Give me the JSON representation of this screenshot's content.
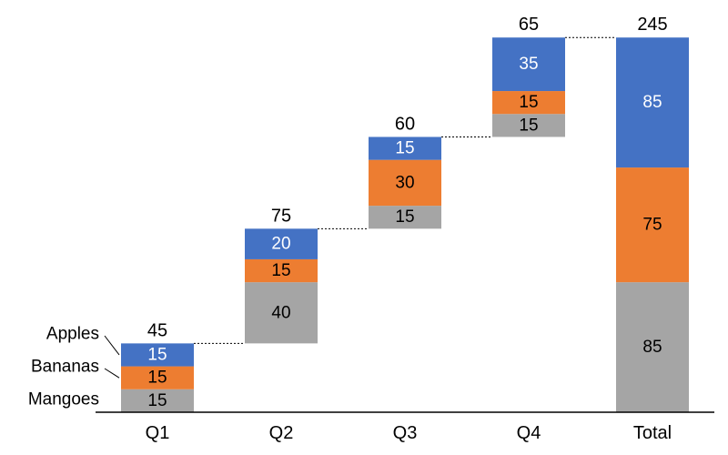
{
  "chart_data": {
    "type": "bar",
    "subtype": "stacked-waterfall",
    "title": "",
    "xlabel": "",
    "ylabel": "",
    "ylim": [
      0,
      260
    ],
    "grid": false,
    "legend_placement": "left",
    "categories": [
      "Q1",
      "Q2",
      "Q3",
      "Q4",
      "Total"
    ],
    "bases": [
      0,
      45,
      120,
      180,
      0
    ],
    "totals": [
      "45",
      "75",
      "60",
      "65",
      "245"
    ],
    "series": [
      {
        "name": "Mangoes",
        "color": "#a5a5a5",
        "values": [
          15,
          40,
          15,
          15,
          85
        ]
      },
      {
        "name": "Bananas",
        "color": "#ed7d31",
        "values": [
          15,
          15,
          30,
          15,
          75
        ]
      },
      {
        "name": "Apples",
        "color": "#4472c4",
        "values": [
          15,
          20,
          15,
          35,
          85
        ]
      }
    ],
    "label_colors": {
      "Mangoes": "#000000",
      "Bananas": "#000000",
      "Apples": "#ffffff"
    },
    "connectors": true
  }
}
